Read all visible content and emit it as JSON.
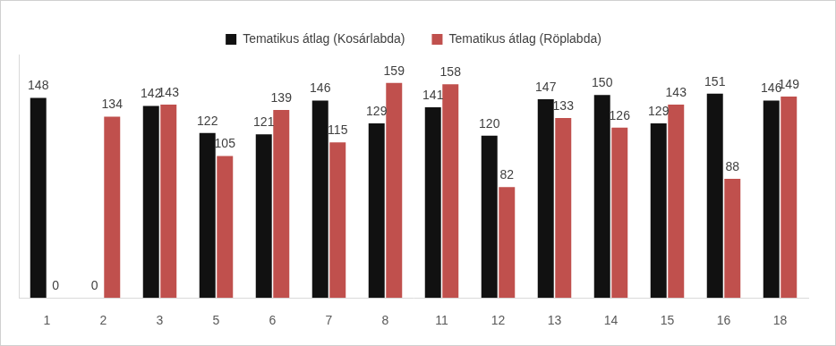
{
  "chart_data": {
    "type": "bar",
    "categories": [
      "1",
      "2",
      "3",
      "5",
      "6",
      "7",
      "8",
      "11",
      "12",
      "13",
      "14",
      "15",
      "16",
      "18"
    ],
    "series": [
      {
        "name": "Tematikus átlag (Kosárlabda)",
        "color": "#111111",
        "values": [
          148,
          0,
          142,
          122,
          121,
          146,
          129,
          141,
          120,
          147,
          150,
          129,
          151,
          146
        ]
      },
      {
        "name": "Tematikus átlag (Röplabda)",
        "color": "#c0504d",
        "values": [
          0,
          134,
          143,
          105,
          139,
          115,
          159,
          158,
          82,
          133,
          126,
          143,
          88,
          149
        ]
      }
    ],
    "ylim": [
      0,
      180
    ],
    "grid": false,
    "legend": "top",
    "data_labels": true,
    "tick_labels": "x"
  }
}
